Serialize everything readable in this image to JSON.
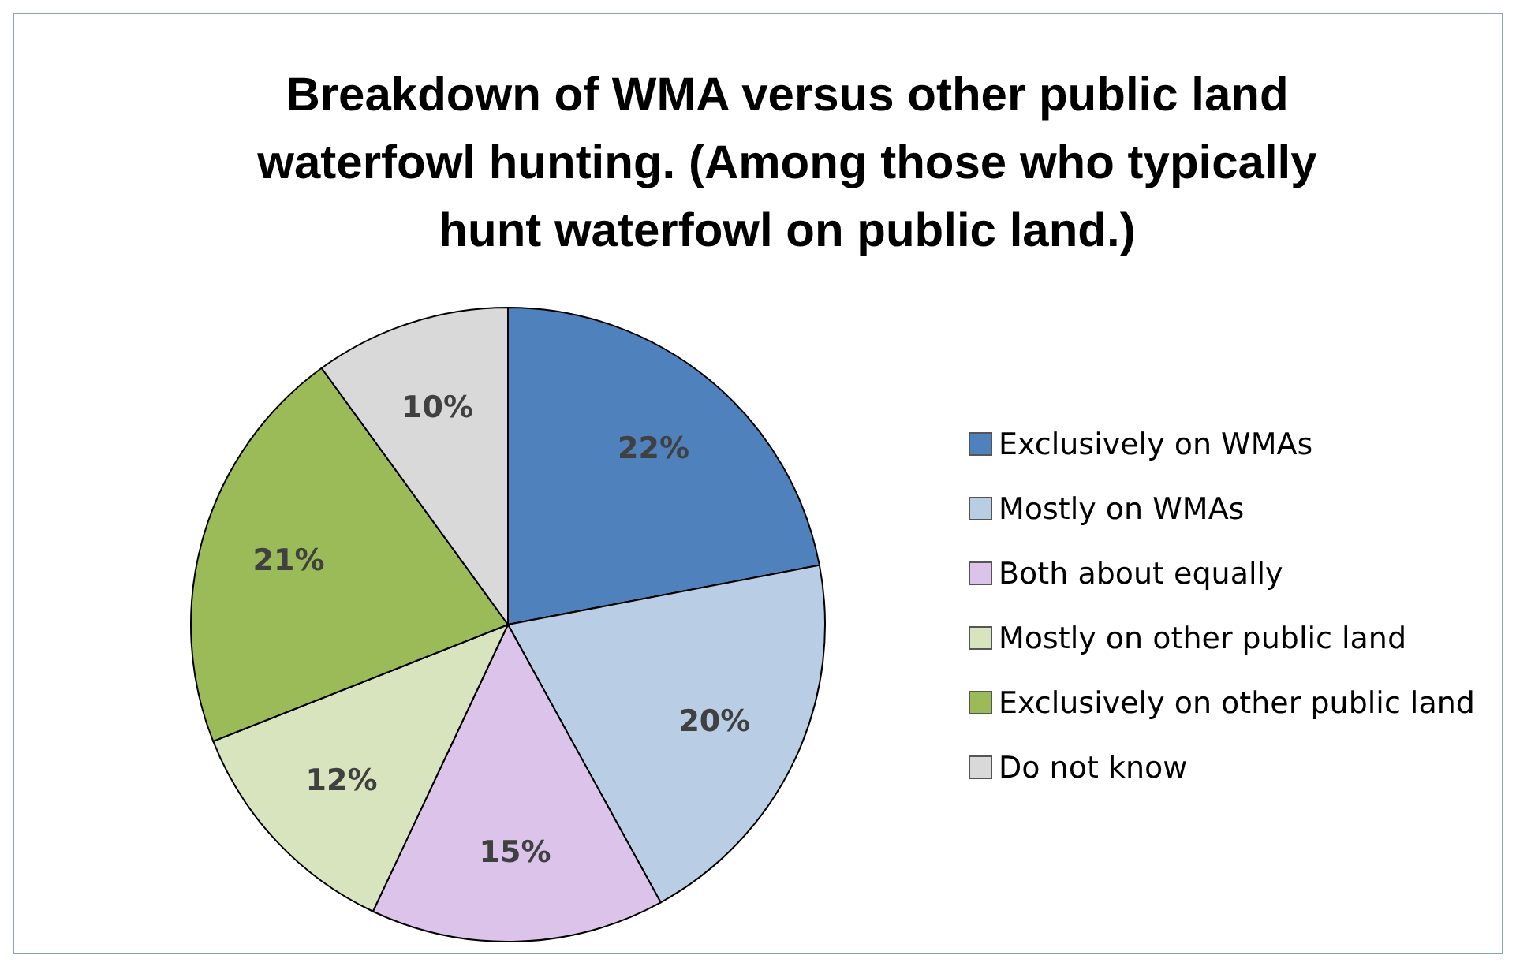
{
  "chart_data": {
    "type": "pie",
    "title": "Breakdown of WMA versus other public land waterfowl hunting. (Among those who typically hunt waterfowl on public land.)",
    "categories": [
      "Exclusively on WMAs",
      "Mostly on WMAs",
      "Both about equally",
      "Mostly on other public land",
      "Exclusively on other public land",
      "Do not know"
    ],
    "values": [
      22,
      20,
      15,
      12,
      21,
      10
    ],
    "colors": [
      "#4f81bd",
      "#b9cde5",
      "#dcc3ea",
      "#d7e4bd",
      "#9bbb59",
      "#d9d9d9"
    ],
    "value_labels": [
      "22%",
      "20%",
      "15%",
      "12%",
      "21%",
      "10%"
    ],
    "legend": "right"
  }
}
